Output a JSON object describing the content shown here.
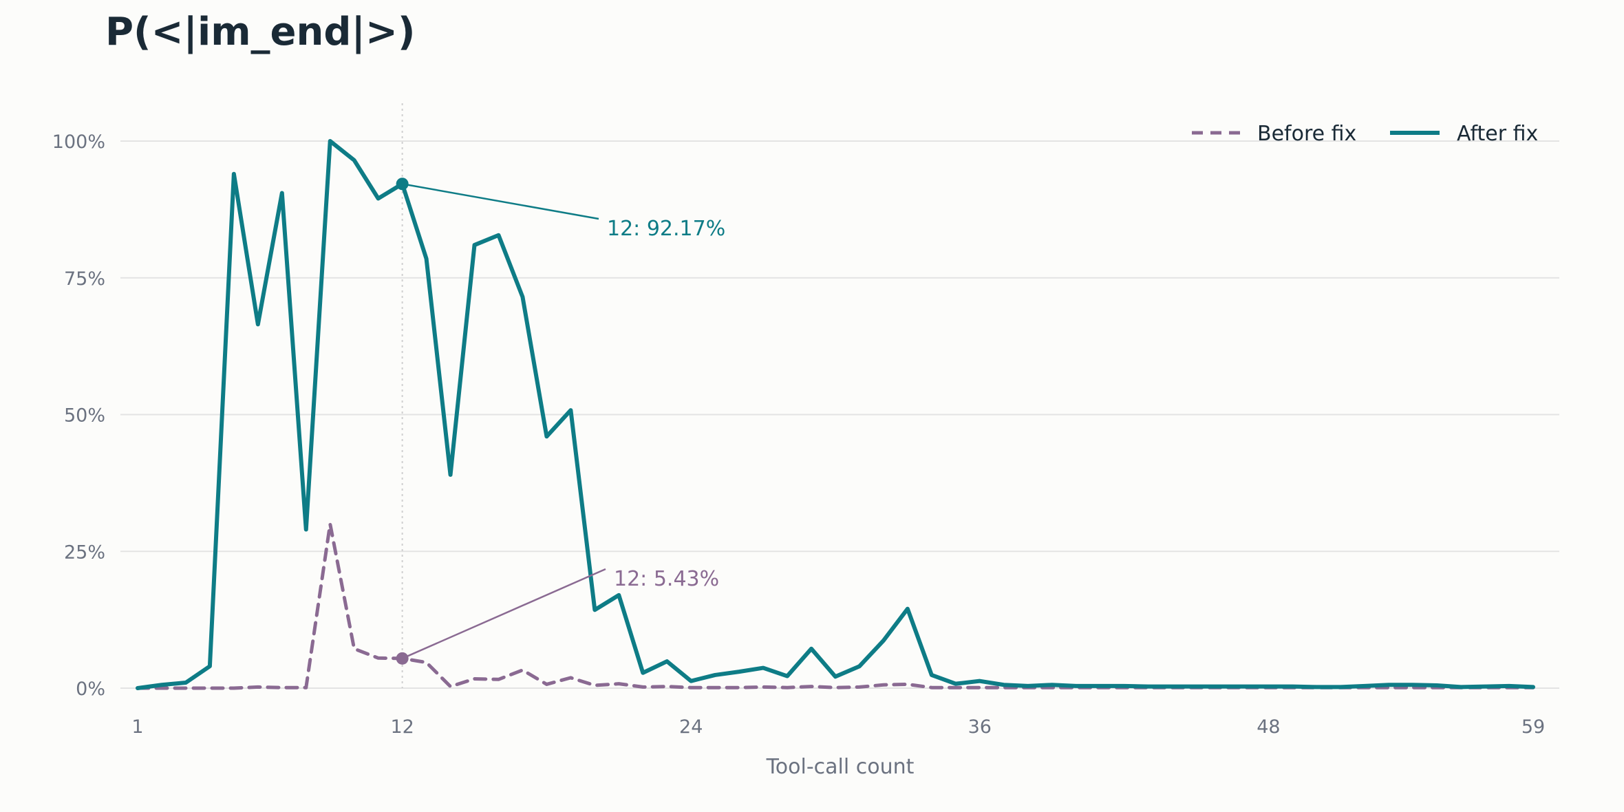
{
  "chart_data": {
    "type": "line",
    "title": "P(<|im_end|>)",
    "xlabel": "Tool-call count",
    "ylabel": "",
    "xlim": [
      1,
      59
    ],
    "ylim": [
      0,
      1
    ],
    "x_ticks": [
      1,
      12,
      24,
      36,
      48,
      59
    ],
    "y_ticks": [
      0,
      0.25,
      0.5,
      0.75,
      1.0
    ],
    "y_tick_labels": [
      "0%",
      "25%",
      "50%",
      "75%",
      "100%"
    ],
    "grid": "horizontal",
    "legend_position": "top-right",
    "x": [
      1,
      2,
      3,
      4,
      5,
      6,
      7,
      8,
      9,
      10,
      11,
      12,
      13,
      14,
      15,
      16,
      17,
      18,
      19,
      20,
      21,
      22,
      23,
      24,
      25,
      26,
      27,
      28,
      29,
      30,
      31,
      32,
      33,
      34,
      35,
      36,
      37,
      38,
      39,
      40,
      41,
      42,
      43,
      44,
      45,
      46,
      47,
      48,
      49,
      50,
      51,
      52,
      53,
      54,
      55,
      56,
      57,
      58,
      59
    ],
    "series": [
      {
        "name": "Before fix",
        "color": "#8a6a92",
        "style": "dashed",
        "values": [
          0,
          0,
          0,
          0,
          0,
          0.002,
          0.001,
          0.001,
          0.3,
          0.072,
          0.055,
          0.0543,
          0.047,
          0.003,
          0.017,
          0.016,
          0.033,
          0.007,
          0.019,
          0.005,
          0.008,
          0.002,
          0.003,
          0.001,
          0.001,
          0.001,
          0.002,
          0.001,
          0.003,
          0.001,
          0.002,
          0.006,
          0.007,
          0.001,
          0.001,
          0.001,
          0.001,
          0.001,
          0.001,
          0.001,
          0.001,
          0.001,
          0.001,
          0.001,
          0.001,
          0.001,
          0.001,
          0.001,
          0.001,
          0.001,
          0.001,
          0.001,
          0.001,
          0.001,
          0.001,
          0.001,
          0.001,
          0.001,
          0.001
        ]
      },
      {
        "name": "After fix",
        "color": "#0e7c86",
        "style": "solid",
        "values": [
          0,
          0.006,
          0.01,
          0.04,
          0.94,
          0.665,
          0.905,
          0.29,
          1.0,
          0.965,
          0.895,
          0.9217,
          0.785,
          0.39,
          0.81,
          0.828,
          0.715,
          0.46,
          0.508,
          0.143,
          0.17,
          0.028,
          0.049,
          0.013,
          0.024,
          0.03,
          0.037,
          0.022,
          0.072,
          0.021,
          0.04,
          0.087,
          0.145,
          0.024,
          0.008,
          0.013,
          0.006,
          0.004,
          0.006,
          0.004,
          0.004,
          0.004,
          0.003,
          0.003,
          0.003,
          0.003,
          0.003,
          0.003,
          0.003,
          0.002,
          0.002,
          0.004,
          0.006,
          0.006,
          0.005,
          0.002,
          0.003,
          0.004,
          0.002
        ]
      }
    ],
    "annotations": [
      {
        "series": "After fix",
        "x": 12,
        "y": 0.9217,
        "text": "12: 92.17%"
      },
      {
        "series": "Before fix",
        "x": 12,
        "y": 0.0543,
        "text": "12: 5.43%"
      }
    ],
    "reference_line_x": 12
  }
}
